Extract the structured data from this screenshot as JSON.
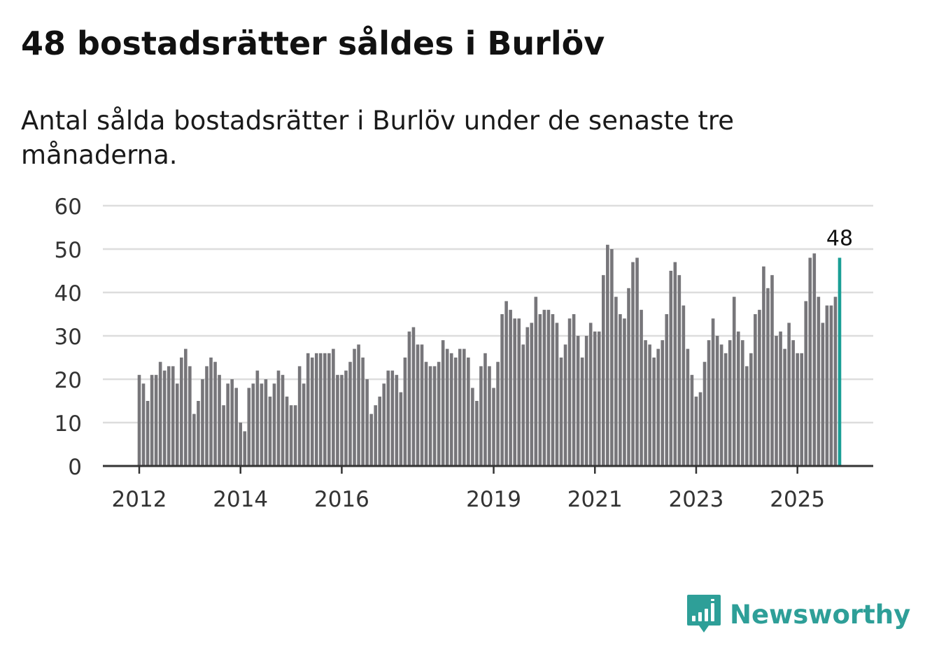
{
  "title": "48 bostadsrätter såldes i Burlöv",
  "subtitle": "Antal sålda bostadsrätter i Burlöv under de senaste tre månaderna.",
  "brand": {
    "name": "Newsworthy",
    "color": "#2e9f98"
  },
  "chart_data": {
    "type": "bar",
    "title": "48 bostadsrätter såldes i Burlöv",
    "subtitle": "Antal sålda bostadsrätter i Burlöv under de senaste tre månaderna.",
    "xlabel": "",
    "ylabel": "",
    "ylim": [
      0,
      60
    ],
    "yticks": [
      "0",
      "10",
      "20",
      "30",
      "40",
      "50",
      "60"
    ],
    "grid": true,
    "start": "2012-01",
    "frequency": "monthly",
    "xticks": [
      {
        "label": "2012",
        "index": 0
      },
      {
        "label": "2014",
        "index": 24
      },
      {
        "label": "2016",
        "index": 48
      },
      {
        "label": "2019",
        "index": 84
      },
      {
        "label": "2021",
        "index": 108
      },
      {
        "label": "2023",
        "index": 132
      },
      {
        "label": "2025",
        "index": 156
      }
    ],
    "values": [
      21,
      19,
      15,
      21,
      21,
      24,
      22,
      23,
      23,
      19,
      25,
      27,
      23,
      12,
      15,
      20,
      23,
      25,
      24,
      21,
      14,
      19,
      20,
      18,
      10,
      8,
      18,
      19,
      22,
      19,
      20,
      16,
      19,
      22,
      21,
      16,
      14,
      14,
      23,
      19,
      26,
      25,
      26,
      26,
      26,
      26,
      27,
      21,
      21,
      22,
      24,
      27,
      28,
      25,
      20,
      12,
      14,
      16,
      19,
      22,
      22,
      21,
      17,
      25,
      31,
      32,
      28,
      28,
      24,
      23,
      23,
      24,
      29,
      27,
      26,
      25,
      27,
      27,
      25,
      18,
      15,
      23,
      26,
      23,
      18,
      24,
      35,
      38,
      36,
      34,
      34,
      28,
      32,
      33,
      39,
      35,
      36,
      36,
      35,
      33,
      25,
      28,
      34,
      35,
      30,
      25,
      30,
      33,
      31,
      31,
      44,
      51,
      50,
      39,
      35,
      34,
      41,
      47,
      48,
      36,
      29,
      28,
      25,
      27,
      29,
      35,
      45,
      47,
      44,
      37,
      27,
      21,
      16,
      17,
      24,
      29,
      34,
      30,
      28,
      26,
      29,
      39,
      31,
      29,
      23,
      26,
      35,
      36,
      46,
      41,
      44,
      30,
      31,
      27,
      33,
      29,
      26,
      26,
      38,
      48,
      49,
      39,
      33,
      37,
      37,
      39,
      48
    ],
    "highlight": {
      "index": 166,
      "value": 48,
      "label": "48",
      "color": "#1a9e95"
    },
    "bar_color": "#77767a",
    "grid_color": "#dddddd",
    "axis_color": "#333333"
  }
}
